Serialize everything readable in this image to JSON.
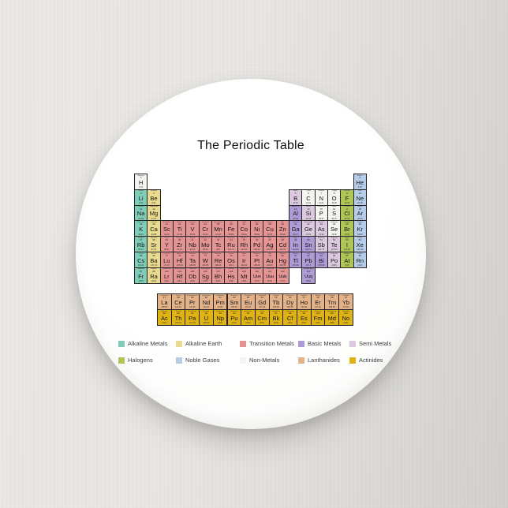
{
  "title": "The Periodic Table",
  "categories": {
    "ak": {
      "label": "Alkaline Metals",
      "color": "#7FCDB9"
    },
    "ae": {
      "label": "Alkaline Earth",
      "color": "#E8DA8F"
    },
    "tr": {
      "label": "Transition Metals",
      "color": "#E59494"
    },
    "bm": {
      "label": "Basic Metals",
      "color": "#AE9BD6"
    },
    "sm": {
      "label": "Semi Metals",
      "color": "#DCC8DF"
    },
    "hl": {
      "label": "Halogens",
      "color": "#AFC657"
    },
    "ng": {
      "label": "Noble Gases",
      "color": "#B5CDE9"
    },
    "nm": {
      "label": "Non-Metals",
      "color": "#F4F4F1"
    },
    "la": {
      "label": "Lanthanides",
      "color": "#E3B288"
    },
    "ac": {
      "label": "Actinides",
      "color": "#E0B314"
    }
  },
  "legend": {
    "rows": [
      [
        "ak",
        "ae",
        "tr",
        "bm",
        "sm"
      ],
      [
        "hl",
        "ng",
        "nm",
        "la",
        "ac"
      ]
    ]
  },
  "elements": [
    [
      1,
      1,
      1,
      "H",
      "Hydrogen",
      "1.01",
      "nm"
    ],
    [
      1,
      18,
      2,
      "He",
      "Helium",
      "4.00",
      "ng"
    ],
    [
      2,
      1,
      3,
      "Li",
      "Lithium",
      "6.94",
      "ak"
    ],
    [
      2,
      2,
      4,
      "Be",
      "Beryllium",
      "9.01",
      "ae"
    ],
    [
      2,
      13,
      5,
      "B",
      "Boron",
      "10.81",
      "sm"
    ],
    [
      2,
      14,
      6,
      "C",
      "Carbon",
      "12.01",
      "nm"
    ],
    [
      2,
      15,
      7,
      "N",
      "Nitrogen",
      "14.01",
      "nm"
    ],
    [
      2,
      16,
      8,
      "O",
      "Oxygen",
      "16.00",
      "nm"
    ],
    [
      2,
      17,
      9,
      "F",
      "Fluorine",
      "19.00",
      "hl"
    ],
    [
      2,
      18,
      10,
      "Ne",
      "Neon",
      "20.18",
      "ng"
    ],
    [
      3,
      1,
      11,
      "Na",
      "Sodium",
      "22.99",
      "ak"
    ],
    [
      3,
      2,
      12,
      "Mg",
      "Magnesium",
      "24.31",
      "ae"
    ],
    [
      3,
      13,
      13,
      "Al",
      "Aluminum",
      "26.98",
      "bm"
    ],
    [
      3,
      14,
      14,
      "Si",
      "Silicon",
      "28.09",
      "sm"
    ],
    [
      3,
      15,
      15,
      "P",
      "Phosphorus",
      "30.97",
      "nm"
    ],
    [
      3,
      16,
      16,
      "S",
      "Sulfur",
      "32.07",
      "nm"
    ],
    [
      3,
      17,
      17,
      "Cl",
      "Chlorine",
      "35.45",
      "hl"
    ],
    [
      3,
      18,
      18,
      "Ar",
      "Argon",
      "39.95",
      "ng"
    ],
    [
      4,
      1,
      19,
      "K",
      "Potassium",
      "39.10",
      "ak"
    ],
    [
      4,
      2,
      20,
      "Ca",
      "Calcium",
      "40.08",
      "ae"
    ],
    [
      4,
      3,
      21,
      "Sc",
      "Scandium",
      "44.96",
      "tr"
    ],
    [
      4,
      4,
      22,
      "Ti",
      "Titanium",
      "47.88",
      "tr"
    ],
    [
      4,
      5,
      23,
      "V",
      "Vanadium",
      "50.94",
      "tr"
    ],
    [
      4,
      6,
      24,
      "Cr",
      "Chromium",
      "52.00",
      "tr"
    ],
    [
      4,
      7,
      25,
      "Mn",
      "Manganese",
      "54.94",
      "tr"
    ],
    [
      4,
      8,
      26,
      "Fe",
      "Iron",
      "55.85",
      "tr"
    ],
    [
      4,
      9,
      27,
      "Co",
      "Cobalt",
      "58.93",
      "tr"
    ],
    [
      4,
      10,
      28,
      "Ni",
      "Nickel",
      "58.69",
      "tr"
    ],
    [
      4,
      11,
      29,
      "Cu",
      "Copper",
      "63.55",
      "tr"
    ],
    [
      4,
      12,
      30,
      "Zn",
      "Zinc",
      "65.39",
      "tr"
    ],
    [
      4,
      13,
      31,
      "Ga",
      "Gallium",
      "69.72",
      "bm"
    ],
    [
      4,
      14,
      32,
      "Ge",
      "Germanium",
      "72.61",
      "sm"
    ],
    [
      4,
      15,
      33,
      "As",
      "Arsenic",
      "74.92",
      "sm"
    ],
    [
      4,
      16,
      34,
      "Se",
      "Selenium",
      "78.96",
      "nm"
    ],
    [
      4,
      17,
      35,
      "Br",
      "Bromine",
      "79.90",
      "hl"
    ],
    [
      4,
      18,
      36,
      "Kr",
      "Krypton",
      "83.80",
      "ng"
    ],
    [
      5,
      1,
      37,
      "Rb",
      "Rubidium",
      "85.47",
      "ak"
    ],
    [
      5,
      2,
      38,
      "Sr",
      "Strontium",
      "87.62",
      "ae"
    ],
    [
      5,
      3,
      39,
      "Y",
      "Yttrium",
      "88.91",
      "tr"
    ],
    [
      5,
      4,
      40,
      "Zr",
      "Zirconium",
      "91.22",
      "tr"
    ],
    [
      5,
      5,
      41,
      "Nb",
      "Niobium",
      "92.91",
      "tr"
    ],
    [
      5,
      6,
      42,
      "Mo",
      "Molybdenum",
      "95.94",
      "tr"
    ],
    [
      5,
      7,
      43,
      "Tc",
      "Technetium",
      "(98)",
      "tr"
    ],
    [
      5,
      8,
      44,
      "Ru",
      "Ruthenium",
      "101.07",
      "tr"
    ],
    [
      5,
      9,
      45,
      "Rh",
      "Rhodium",
      "102.91",
      "tr"
    ],
    [
      5,
      10,
      46,
      "Pd",
      "Palladium",
      "106.42",
      "tr"
    ],
    [
      5,
      11,
      47,
      "Ag",
      "Silver",
      "107.87",
      "tr"
    ],
    [
      5,
      12,
      48,
      "Cd",
      "Cadmium",
      "112.41",
      "tr"
    ],
    [
      5,
      13,
      49,
      "In",
      "Indium",
      "114.82",
      "bm"
    ],
    [
      5,
      14,
      50,
      "Sn",
      "Tin",
      "118.71",
      "bm"
    ],
    [
      5,
      15,
      51,
      "Sb",
      "Antimony",
      "121.76",
      "sm"
    ],
    [
      5,
      16,
      52,
      "Te",
      "Tellurium",
      "127.60",
      "sm"
    ],
    [
      5,
      17,
      53,
      "I",
      "Iodine",
      "126.90",
      "hl"
    ],
    [
      5,
      18,
      54,
      "Xe",
      "Xenon",
      "131.29",
      "ng"
    ],
    [
      6,
      1,
      55,
      "Cs",
      "Cesium",
      "132.91",
      "ak"
    ],
    [
      6,
      2,
      56,
      "Ba",
      "Barium",
      "137.33",
      "ae"
    ],
    [
      6,
      3,
      71,
      "Lu",
      "Lutetium",
      "174.97",
      "tr"
    ],
    [
      6,
      4,
      72,
      "Hf",
      "Hafnium",
      "178.49",
      "tr"
    ],
    [
      6,
      5,
      73,
      "Ta",
      "Tantalum",
      "180.95",
      "tr"
    ],
    [
      6,
      6,
      74,
      "W",
      "Tungsten",
      "183.85",
      "tr"
    ],
    [
      6,
      7,
      75,
      "Re",
      "Rhenium",
      "186.21",
      "tr"
    ],
    [
      6,
      8,
      76,
      "Os",
      "Osmium",
      "190.2",
      "tr"
    ],
    [
      6,
      9,
      77,
      "Ir",
      "Iridium",
      "192.22",
      "tr"
    ],
    [
      6,
      10,
      78,
      "Pt",
      "Platinum",
      "195.08",
      "tr"
    ],
    [
      6,
      11,
      79,
      "Au",
      "Gold",
      "196.97",
      "tr"
    ],
    [
      6,
      12,
      80,
      "Hg",
      "Mercury",
      "200.59",
      "tr"
    ],
    [
      6,
      13,
      81,
      "Tl",
      "Thallium",
      "204.38",
      "bm"
    ],
    [
      6,
      14,
      82,
      "Pb",
      "Lead",
      "207.2",
      "bm"
    ],
    [
      6,
      15,
      83,
      "Bi",
      "Bismuth",
      "208.98",
      "bm"
    ],
    [
      6,
      16,
      84,
      "Po",
      "Polonium",
      "(209)",
      "sm"
    ],
    [
      6,
      17,
      85,
      "At",
      "Astatine",
      "(210)",
      "hl"
    ],
    [
      6,
      18,
      86,
      "Rn",
      "Radon",
      "(222)",
      "ng"
    ],
    [
      7,
      1,
      87,
      "Fr",
      "Francium",
      "(223)",
      "ak"
    ],
    [
      7,
      2,
      88,
      "Ra",
      "Radium",
      "(226)",
      "ae"
    ],
    [
      7,
      3,
      103,
      "Lr",
      "Lawrencium",
      "(262)",
      "tr"
    ],
    [
      7,
      4,
      104,
      "Rf",
      "Rutherfordium",
      "(261)",
      "tr"
    ],
    [
      7,
      5,
      105,
      "Db",
      "Dubnium",
      "(262)",
      "tr"
    ],
    [
      7,
      6,
      106,
      "Sg",
      "Seaborgium",
      "(266)",
      "tr"
    ],
    [
      7,
      7,
      107,
      "Bh",
      "Bohrium",
      "(264)",
      "tr"
    ],
    [
      7,
      8,
      108,
      "Hs",
      "Hassium",
      "(269)",
      "tr"
    ],
    [
      7,
      9,
      109,
      "Mt",
      "Meitnerium",
      "(268)",
      "tr"
    ],
    [
      7,
      10,
      110,
      "Uun",
      "Ununnilium",
      "(271)",
      "tr"
    ],
    [
      7,
      11,
      111,
      "Uuu",
      "Unununium",
      "(272)",
      "tr"
    ],
    [
      7,
      12,
      112,
      "Uub",
      "Ununbium",
      "(277)",
      "tr"
    ],
    [
      7,
      14,
      114,
      "Uuq",
      "Ununquadium",
      "(289)",
      "bm"
    ],
    [
      8,
      1,
      57,
      "La",
      "Lanthanum",
      "138.91",
      "la"
    ],
    [
      8,
      2,
      58,
      "Ce",
      "Cerium",
      "140.12",
      "la"
    ],
    [
      8,
      3,
      59,
      "Pr",
      "Praseodymium",
      "140.91",
      "la"
    ],
    [
      8,
      4,
      60,
      "Nd",
      "Neodymium",
      "144.24",
      "la"
    ],
    [
      8,
      5,
      61,
      "Pm",
      "Promethium",
      "(145)",
      "la"
    ],
    [
      8,
      6,
      62,
      "Sm",
      "Samarium",
      "150.36",
      "la"
    ],
    [
      8,
      7,
      63,
      "Eu",
      "Europium",
      "151.97",
      "la"
    ],
    [
      8,
      8,
      64,
      "Gd",
      "Gadolinium",
      "157.25",
      "la"
    ],
    [
      8,
      9,
      65,
      "Tb",
      "Terbium",
      "158.93",
      "la"
    ],
    [
      8,
      10,
      66,
      "Dy",
      "Dysprosium",
      "162.50",
      "la"
    ],
    [
      8,
      11,
      67,
      "Ho",
      "Holmium",
      "164.93",
      "la"
    ],
    [
      8,
      12,
      68,
      "Er",
      "Erbium",
      "167.26",
      "la"
    ],
    [
      8,
      13,
      69,
      "Tm",
      "Thulium",
      "168.93",
      "la"
    ],
    [
      8,
      14,
      70,
      "Yb",
      "Ytterbium",
      "173.04",
      "la"
    ],
    [
      9,
      1,
      89,
      "Ac",
      "Actinium",
      "(227)",
      "ac"
    ],
    [
      9,
      2,
      90,
      "Th",
      "Thorium",
      "232.04",
      "ac"
    ],
    [
      9,
      3,
      91,
      "Pa",
      "Protactinium",
      "231.04",
      "ac"
    ],
    [
      9,
      4,
      92,
      "U",
      "Uranium",
      "238.03",
      "ac"
    ],
    [
      9,
      5,
      93,
      "Np",
      "Neptunium",
      "(237)",
      "ac"
    ],
    [
      9,
      6,
      94,
      "Pu",
      "Plutonium",
      "(244)",
      "ac"
    ],
    [
      9,
      7,
      95,
      "Am",
      "Americium",
      "(243)",
      "ac"
    ],
    [
      9,
      8,
      96,
      "Cm",
      "Curium",
      "(247)",
      "ac"
    ],
    [
      9,
      9,
      97,
      "Bk",
      "Berkelium",
      "(247)",
      "ac"
    ],
    [
      9,
      10,
      98,
      "Cf",
      "Californium",
      "(251)",
      "ac"
    ],
    [
      9,
      11,
      99,
      "Es",
      "Einsteinium",
      "(252)",
      "ac"
    ],
    [
      9,
      12,
      100,
      "Fm",
      "Fermium",
      "(257)",
      "ac"
    ],
    [
      9,
      13,
      101,
      "Md",
      "Mendelevium",
      "(258)",
      "ac"
    ],
    [
      9,
      14,
      102,
      "No",
      "Nobelium",
      "(259)",
      "ac"
    ]
  ]
}
